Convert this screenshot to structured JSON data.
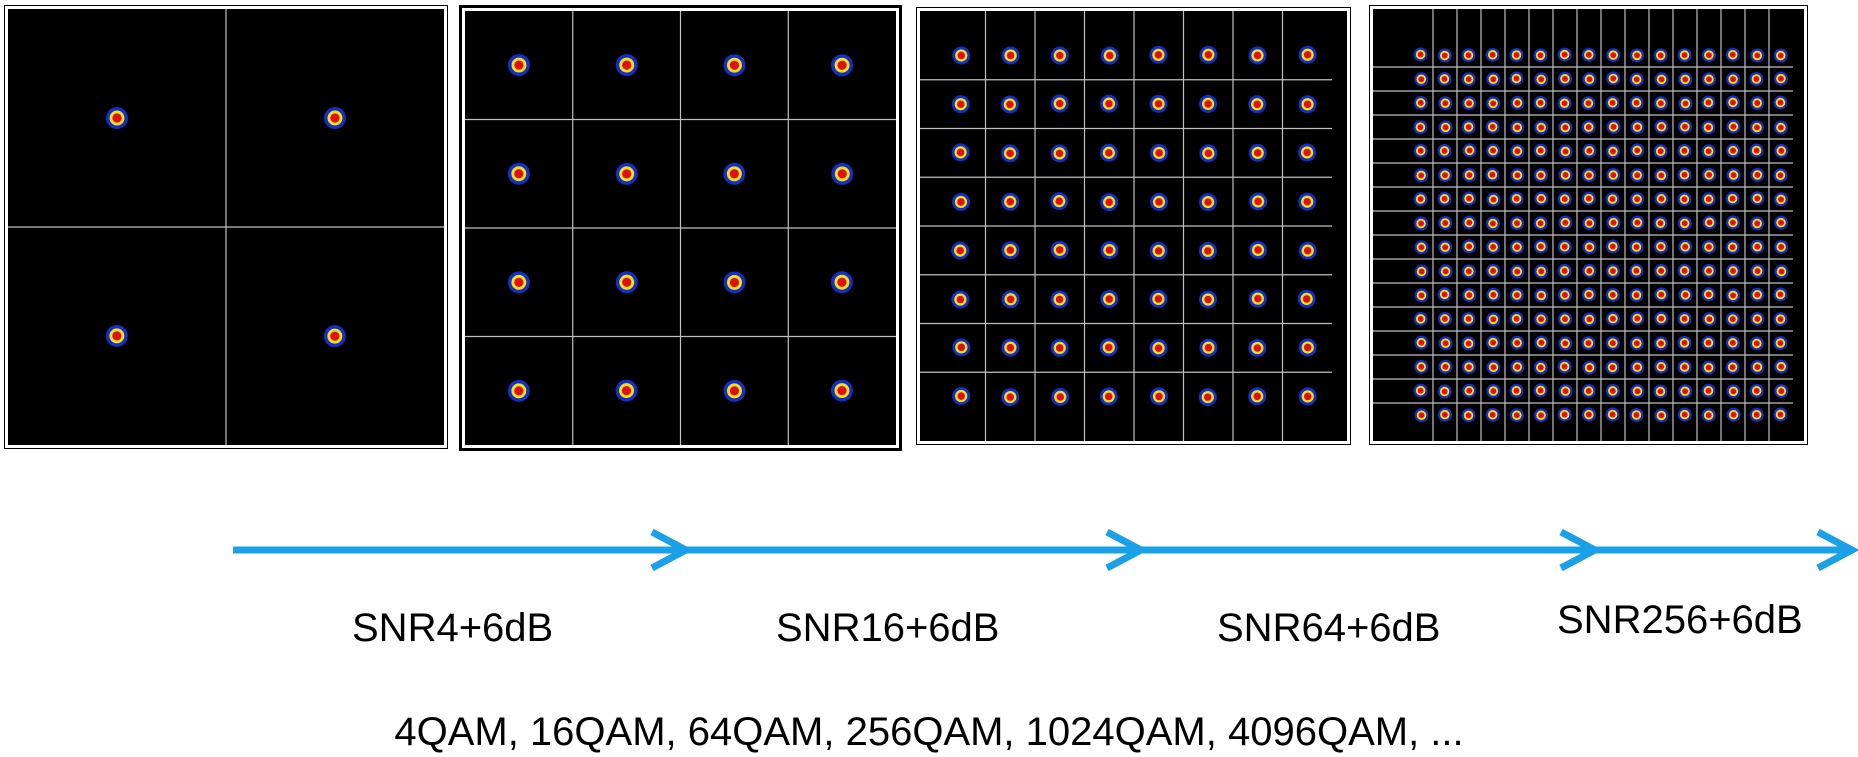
{
  "chart_data": [
    {
      "type": "scatter",
      "title": "",
      "order": 4,
      "grid_per_side": 2
    },
    {
      "type": "scatter",
      "title": "",
      "order": 16,
      "grid_per_side": 4
    },
    {
      "type": "scatter",
      "title": "",
      "order": 64,
      "grid_per_side": 8
    },
    {
      "type": "scatter",
      "title": "",
      "order": 256,
      "grid_per_side": 16
    }
  ],
  "point_colors": {
    "outer": "#1030c8",
    "ring": "#f0e020",
    "core": "#e01010"
  },
  "arrow_color": "#1aa0e6",
  "snr_labels": [
    "SNR4+6dB",
    "SNR16+6dB",
    "SNR64+6dB",
    "SNR256+6dB"
  ],
  "caption": "4QAM, 16QAM, 64QAM, 256QAM, 1024QAM, 4096QAM, ..."
}
